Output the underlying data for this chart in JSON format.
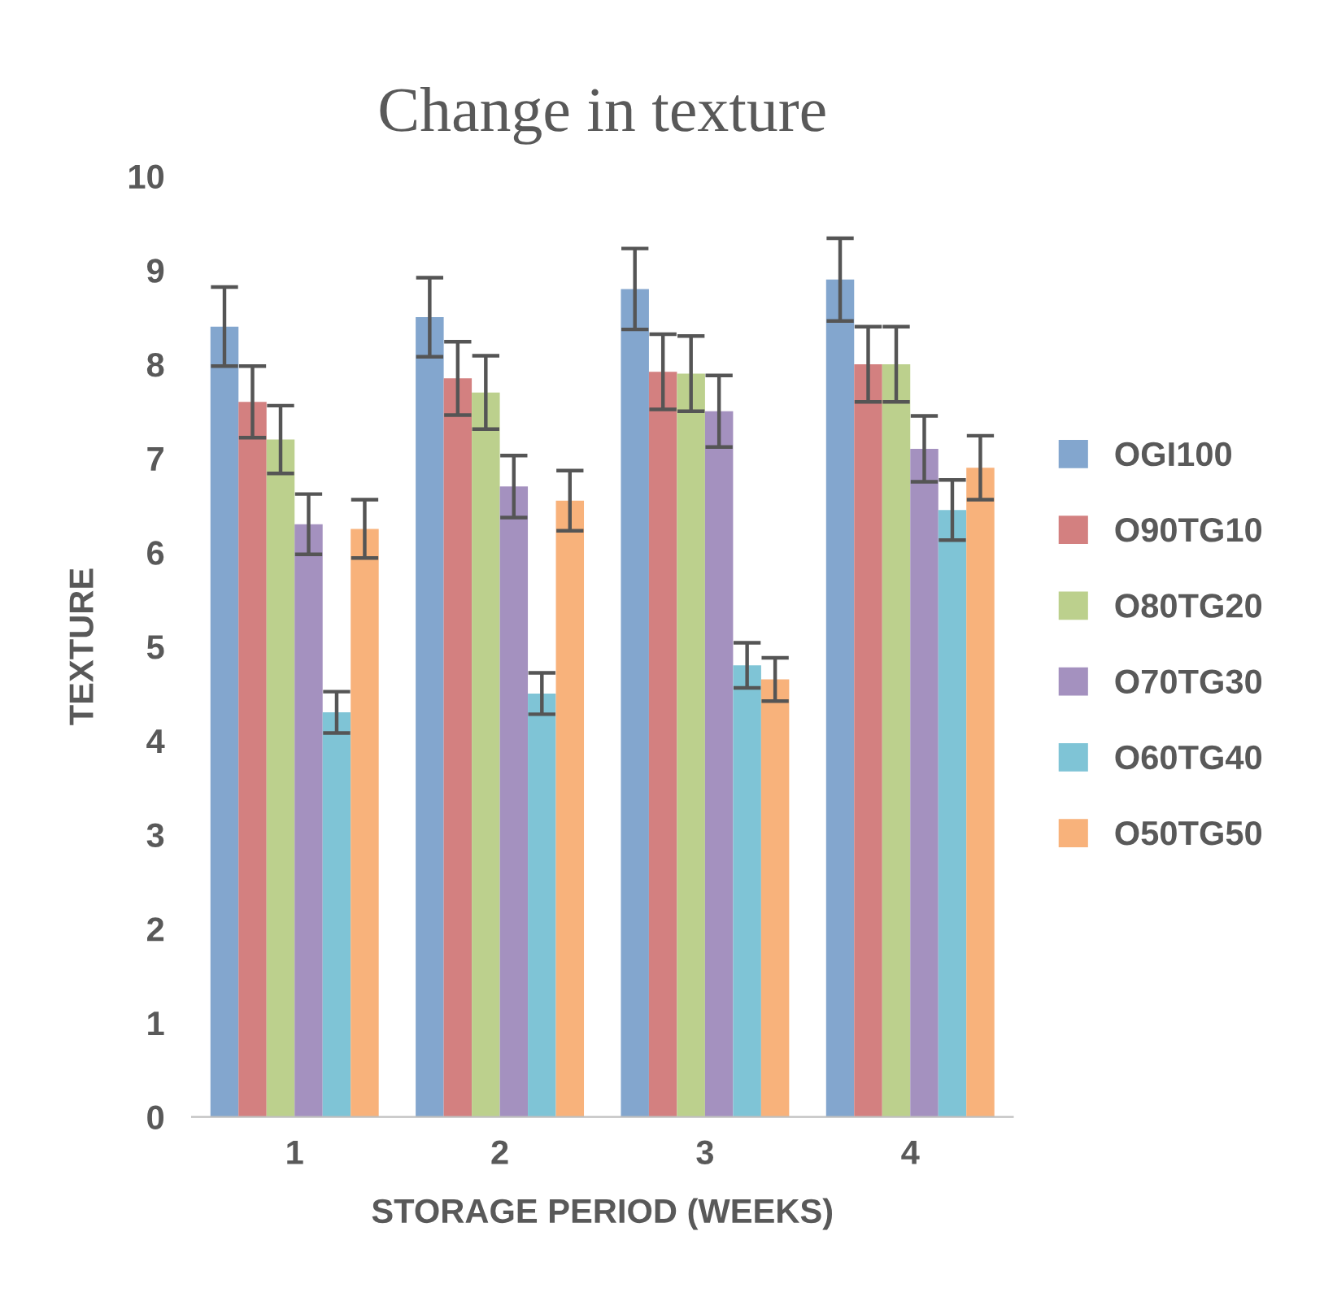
{
  "chart_data": {
    "type": "bar",
    "title": "Change in texture",
    "xlabel": "STORAGE PERIOD (WEEKS)",
    "ylabel": "TEXTURE",
    "categories": [
      "1",
      "2",
      "3",
      "4"
    ],
    "ylim": [
      0,
      10
    ],
    "yticks": [
      0,
      1,
      2,
      3,
      4,
      5,
      6,
      7,
      8,
      9,
      10
    ],
    "grid": false,
    "legend": "right",
    "series": [
      {
        "name": "OGI100",
        "color": "#83a6ce",
        "values": [
          8.4,
          8.5,
          8.8,
          8.9
        ],
        "errors": [
          0.42,
          0.42,
          0.43,
          0.44
        ]
      },
      {
        "name": "O90TG10",
        "color": "#d38080",
        "values": [
          7.6,
          7.85,
          7.92,
          8.0
        ],
        "errors": [
          0.38,
          0.39,
          0.4,
          0.4
        ]
      },
      {
        "name": "O80TG20",
        "color": "#bcd08d",
        "values": [
          7.2,
          7.7,
          7.9,
          8.0
        ],
        "errors": [
          0.36,
          0.39,
          0.4,
          0.4
        ]
      },
      {
        "name": "O70TG30",
        "color": "#a491bf",
        "values": [
          6.3,
          6.7,
          7.5,
          7.1
        ],
        "errors": [
          0.32,
          0.33,
          0.38,
          0.35
        ]
      },
      {
        "name": "O60TG40",
        "color": "#7fc4d6",
        "values": [
          4.3,
          4.5,
          4.8,
          6.45
        ],
        "errors": [
          0.22,
          0.22,
          0.24,
          0.32
        ]
      },
      {
        "name": "O50TG50",
        "color": "#f8b27b",
        "values": [
          6.25,
          6.55,
          4.65,
          6.9
        ],
        "errors": [
          0.31,
          0.32,
          0.23,
          0.34
        ]
      }
    ]
  }
}
